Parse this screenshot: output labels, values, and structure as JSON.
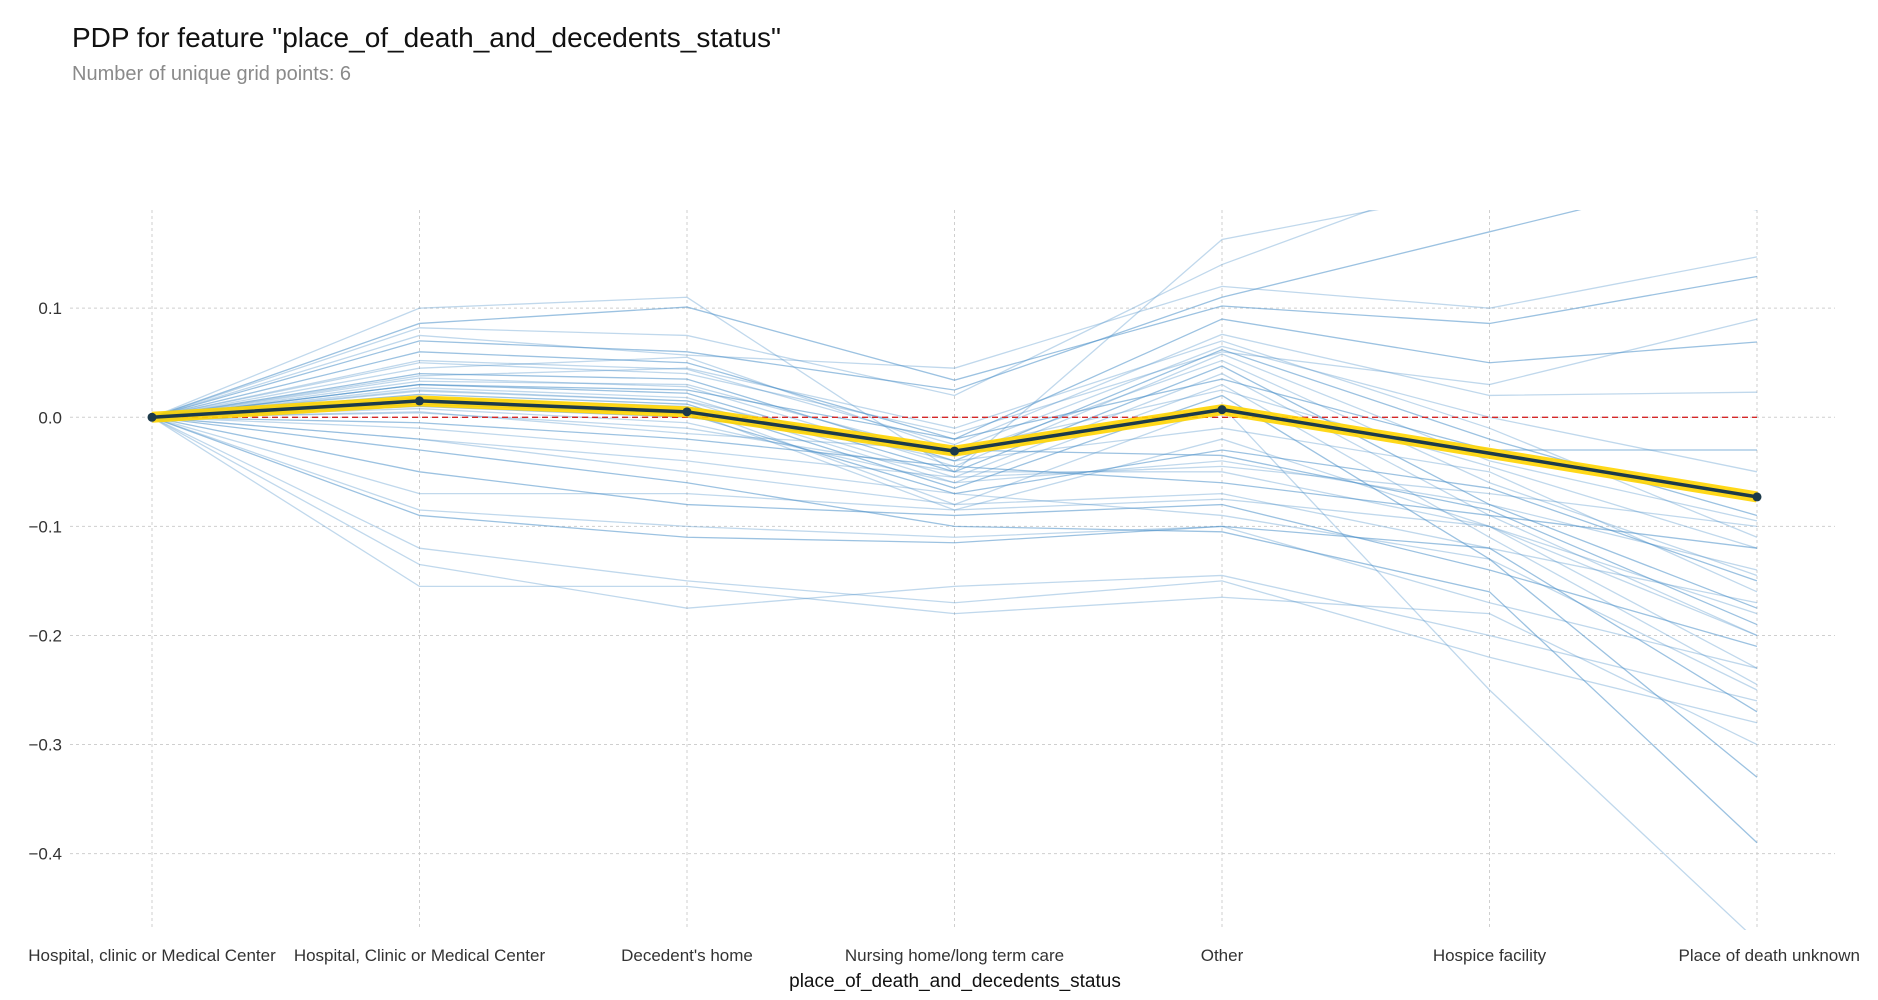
{
  "title": "PDP for feature \"place_of_death_and_decedents_status\"",
  "subtitle": "Number of unique grid points: 6",
  "chart_data": {
    "type": "line",
    "xlabel": "place_of_death_and_decedents_status",
    "ylabel": "",
    "categories": [
      "Hospital, clinic or Medical Center",
      "Hospital, Clinic or Medical Center",
      "Decedent's home",
      "Nursing home/long term care",
      "Other",
      "Hospice facility",
      "Place of death unknown"
    ],
    "ylim": [
      -0.47,
      0.19
    ],
    "yticks": [
      0.1,
      0.0,
      -0.1,
      -0.2,
      -0.3,
      -0.4
    ],
    "ytick_labels": [
      "0.1",
      "0.0",
      "−0.1",
      "−0.2",
      "−0.3",
      "−0.4"
    ],
    "grid": true,
    "reference_line": {
      "y": 0.0,
      "color": "#d62728",
      "style": "dashed"
    },
    "average_series": {
      "values": [
        0.0,
        0.015,
        0.005,
        -0.031,
        0.007,
        -0.033,
        -0.073
      ],
      "color": "#1c3a4a",
      "highlight_color": "#ffd400",
      "markers_on_categories": [
        0,
        1,
        2,
        3,
        4,
        6
      ]
    },
    "ice_lines": [
      [
        0.0,
        0.086,
        0.101,
        0.034,
        0.102,
        0.086,
        0.129
      ],
      [
        0.0,
        0.1,
        0.11,
        -0.05,
        0.163,
        0.21,
        0.21
      ],
      [
        0.0,
        0.075,
        0.057,
        0.045,
        0.12,
        0.1,
        0.147
      ],
      [
        0.0,
        0.06,
        0.05,
        -0.02,
        0.09,
        0.05,
        0.069
      ],
      [
        0.0,
        0.052,
        0.044,
        -0.025,
        0.076,
        0.02,
        0.023
      ],
      [
        0.0,
        0.045,
        0.055,
        -0.03,
        0.065,
        0.0,
        -0.05
      ],
      [
        0.0,
        0.04,
        0.035,
        -0.04,
        0.062,
        -0.02,
        -0.09
      ],
      [
        0.0,
        0.036,
        0.028,
        -0.045,
        0.058,
        -0.04,
        -0.095
      ],
      [
        0.0,
        0.033,
        0.03,
        -0.035,
        0.052,
        -0.06,
        -0.145
      ],
      [
        0.0,
        0.03,
        0.022,
        -0.05,
        0.047,
        -0.08,
        -0.175
      ],
      [
        0.0,
        0.027,
        0.018,
        -0.055,
        0.04,
        -0.09,
        -0.2
      ],
      [
        0.0,
        0.024,
        0.015,
        -0.06,
        0.03,
        -0.11,
        -0.245
      ],
      [
        0.0,
        0.021,
        0.012,
        -0.065,
        0.02,
        -0.13,
        -0.33
      ],
      [
        0.0,
        0.018,
        0.01,
        -0.08,
        0.01,
        -0.25,
        -0.48
      ],
      [
        0.0,
        0.015,
        0.006,
        -0.085,
        -0.02,
        -0.1,
        -0.2
      ],
      [
        0.0,
        0.012,
        0.003,
        -0.07,
        -0.03,
        -0.065,
        -0.15
      ],
      [
        0.0,
        0.008,
        -0.005,
        -0.06,
        -0.04,
        -0.08,
        -0.14
      ],
      [
        0.0,
        0.004,
        -0.01,
        -0.05,
        -0.05,
        -0.1,
        -0.18
      ],
      [
        0.0,
        -0.005,
        -0.02,
        -0.045,
        -0.06,
        -0.09,
        -0.12
      ],
      [
        0.0,
        -0.01,
        -0.03,
        -0.055,
        -0.045,
        -0.07,
        -0.1
      ],
      [
        0.0,
        -0.02,
        -0.05,
        -0.08,
        -0.07,
        -0.12,
        -0.17
      ],
      [
        0.0,
        -0.05,
        -0.08,
        -0.09,
        -0.08,
        -0.14,
        -0.21
      ],
      [
        0.0,
        -0.07,
        -0.07,
        -0.085,
        -0.075,
        -0.1,
        -0.23
      ],
      [
        0.0,
        -0.085,
        -0.1,
        -0.11,
        -0.1,
        -0.17,
        -0.23
      ],
      [
        0.0,
        -0.09,
        -0.11,
        -0.115,
        -0.1,
        -0.12,
        -0.27
      ],
      [
        0.0,
        -0.135,
        -0.175,
        -0.155,
        -0.145,
        -0.2,
        -0.26
      ],
      [
        0.0,
        -0.155,
        -0.155,
        -0.18,
        -0.165,
        -0.18,
        -0.3
      ],
      [
        0.0,
        0.07,
        0.06,
        0.025,
        0.11,
        0.17,
        0.23
      ],
      [
        0.0,
        0.082,
        0.075,
        0.02,
        0.14,
        0.23,
        0.19
      ],
      [
        0.0,
        0.05,
        0.04,
        -0.015,
        0.06,
        0.03,
        0.09
      ],
      [
        0.0,
        0.03,
        0.025,
        -0.02,
        0.035,
        -0.03,
        -0.03
      ],
      [
        0.0,
        0.038,
        0.045,
        -0.01,
        0.07,
        -0.01,
        -0.11
      ],
      [
        0.0,
        0.025,
        0.015,
        -0.04,
        -0.01,
        -0.05,
        -0.16
      ],
      [
        0.0,
        0.01,
        0.0,
        -0.03,
        -0.035,
        -0.085,
        -0.19
      ],
      [
        0.0,
        -0.02,
        -0.04,
        -0.07,
        -0.09,
        -0.13,
        -0.25
      ],
      [
        0.0,
        0.005,
        -0.015,
        -0.03,
        0.025,
        -0.045,
        -0.12
      ],
      [
        0.0,
        -0.03,
        -0.06,
        -0.1,
        -0.105,
        -0.16,
        -0.39
      ],
      [
        0.0,
        -0.12,
        -0.15,
        -0.17,
        -0.15,
        -0.22,
        -0.28
      ]
    ]
  }
}
